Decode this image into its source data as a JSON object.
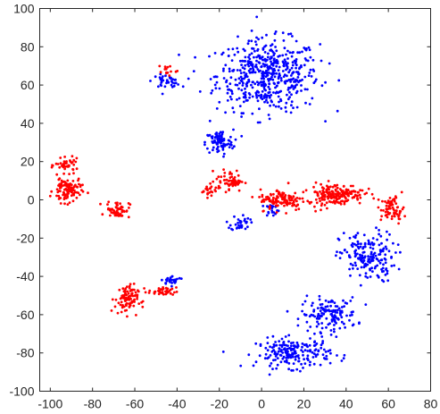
{
  "chart_data": {
    "type": "scatter",
    "title": "",
    "xlabel": "",
    "ylabel": "",
    "xlim": [
      -105,
      80
    ],
    "ylim": [
      -100,
      100
    ],
    "xticks": [
      -100,
      -80,
      -60,
      -40,
      -20,
      0,
      20,
      40,
      60,
      80
    ],
    "yticks": [
      -100,
      -80,
      -60,
      -40,
      -20,
      0,
      20,
      40,
      60,
      80,
      100
    ],
    "xtick_labels": [
      "-100",
      "-80",
      "-60",
      "-40",
      "-20",
      "0",
      "20",
      "40",
      "60",
      "80"
    ],
    "ytick_labels": [
      "-100",
      "-80",
      "-60",
      "-40",
      "-20",
      "0",
      "20",
      "40",
      "60",
      "80",
      "100"
    ],
    "grid": false,
    "legend": "none",
    "series": [
      {
        "color": "#0000ff",
        "clusters": [
          {
            "center": [
              3,
              65
            ],
            "spread": [
              22,
              17
            ],
            "n": 520
          },
          {
            "center": [
              -45,
              62
            ],
            "spread": [
              6,
              3
            ],
            "n": 40
          },
          {
            "center": [
              -20,
              30
            ],
            "spread": [
              6,
              6
            ],
            "n": 90
          },
          {
            "center": [
              -42,
              -42
            ],
            "spread": [
              5,
              2
            ],
            "n": 30
          },
          {
            "center": [
              -10,
              -12
            ],
            "spread": [
              4,
              4
            ],
            "n": 35
          },
          {
            "center": [
              5,
              -5
            ],
            "spread": [
              3,
              3
            ],
            "n": 20
          },
          {
            "center": [
              50,
              -30
            ],
            "spread": [
              12,
              12
            ],
            "n": 180
          },
          {
            "center": [
              32,
              -60
            ],
            "spread": [
              12,
              8
            ],
            "n": 140
          },
          {
            "center": [
              15,
              -80
            ],
            "spread": [
              16,
              7
            ],
            "n": 200
          }
        ]
      },
      {
        "color": "#ff0000",
        "clusters": [
          {
            "center": [
              -92,
              18
            ],
            "spread": [
              5,
              3
            ],
            "n": 40
          },
          {
            "center": [
              -92,
              5
            ],
            "spread": [
              6,
              6
            ],
            "n": 110
          },
          {
            "center": [
              -68,
              -5
            ],
            "spread": [
              5,
              4
            ],
            "n": 60
          },
          {
            "center": [
              -64,
              -52
            ],
            "spread": [
              5,
              7
            ],
            "n": 90
          },
          {
            "center": [
              -47,
              -48
            ],
            "spread": [
              6,
              2
            ],
            "n": 40
          },
          {
            "center": [
              -15,
              10
            ],
            "spread": [
              6,
              5
            ],
            "n": 60
          },
          {
            "center": [
              -25,
              5
            ],
            "spread": [
              3,
              3
            ],
            "n": 20
          },
          {
            "center": [
              10,
              0
            ],
            "spread": [
              10,
              5
            ],
            "n": 120
          },
          {
            "center": [
              35,
              3
            ],
            "spread": [
              12,
              5
            ],
            "n": 190
          },
          {
            "center": [
              62,
              -5
            ],
            "spread": [
              5,
              6
            ],
            "n": 70
          },
          {
            "center": [
              -45,
              68
            ],
            "spread": [
              5,
              3
            ],
            "n": 14
          }
        ]
      }
    ]
  }
}
